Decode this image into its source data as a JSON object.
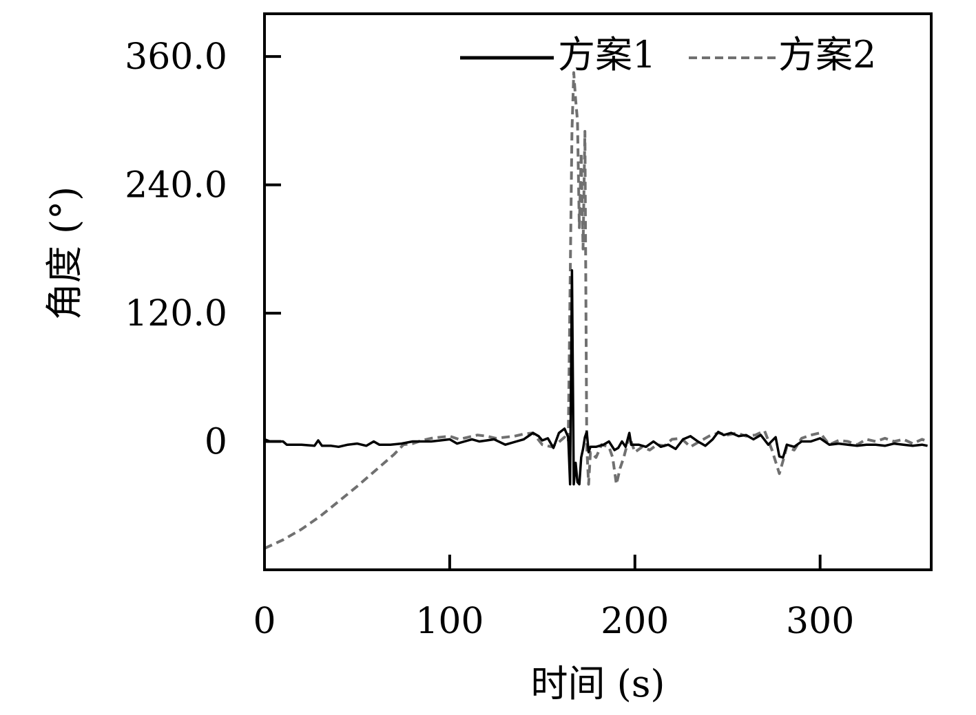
{
  "chart_data": {
    "type": "line",
    "xlabel": "时间 (s)",
    "ylabel": "角度 (°)",
    "xlim": [
      0,
      360
    ],
    "ylim": [
      -120,
      400
    ],
    "xticks": [
      0,
      100,
      200,
      300
    ],
    "xtick_labels": [
      "0",
      "100",
      "200",
      "300"
    ],
    "yticks": [
      0,
      120,
      240,
      360
    ],
    "ytick_labels": [
      "0",
      "120.0",
      "240.0",
      "360.0"
    ],
    "legend_position": "top-right",
    "grid": false,
    "series": [
      {
        "name": "方案1",
        "color": "#000000",
        "dash": "solid",
        "points": [
          [
            0,
            2
          ],
          [
            3,
            0
          ],
          [
            6,
            0
          ],
          [
            10,
            0
          ],
          [
            12,
            -3
          ],
          [
            20,
            -3
          ],
          [
            27,
            -4
          ],
          [
            29,
            1
          ],
          [
            31,
            -4
          ],
          [
            36,
            -4
          ],
          [
            40,
            -5
          ],
          [
            45,
            -3
          ],
          [
            50,
            -2
          ],
          [
            55,
            -4
          ],
          [
            59,
            0
          ],
          [
            62,
            -3
          ],
          [
            68,
            -3
          ],
          [
            74,
            -2
          ],
          [
            80,
            0
          ],
          [
            85,
            0
          ],
          [
            90,
            0
          ],
          [
            95,
            1
          ],
          [
            100,
            2
          ],
          [
            104,
            -2
          ],
          [
            108,
            0
          ],
          [
            112,
            2
          ],
          [
            116,
            0
          ],
          [
            120,
            1
          ],
          [
            124,
            2
          ],
          [
            130,
            -3
          ],
          [
            136,
            0
          ],
          [
            140,
            2
          ],
          [
            145,
            8
          ],
          [
            148,
            5
          ],
          [
            150,
            1
          ],
          [
            153,
            3
          ],
          [
            156,
            -6
          ],
          [
            159,
            8
          ],
          [
            162,
            12
          ],
          [
            164,
            4
          ],
          [
            165,
            -40
          ],
          [
            166,
            160
          ],
          [
            167,
            -40
          ],
          [
            168,
            -20
          ],
          [
            169,
            -38
          ],
          [
            170,
            -40
          ],
          [
            171,
            -15
          ],
          [
            172,
            -7
          ],
          [
            173,
            4
          ],
          [
            174,
            9
          ],
          [
            175,
            -10
          ],
          [
            176,
            -5
          ],
          [
            179,
            -5
          ],
          [
            183,
            -3
          ],
          [
            186,
            0
          ],
          [
            189,
            -8
          ],
          [
            191,
            -6
          ],
          [
            193,
            0
          ],
          [
            195,
            -5
          ],
          [
            197,
            8
          ],
          [
            198,
            -3
          ],
          [
            202,
            -3
          ],
          [
            206,
            -5
          ],
          [
            210,
            0
          ],
          [
            214,
            -5
          ],
          [
            218,
            -3
          ],
          [
            222,
            -7
          ],
          [
            226,
            2
          ],
          [
            230,
            5
          ],
          [
            234,
            0
          ],
          [
            238,
            -4
          ],
          [
            242,
            2
          ],
          [
            245,
            9
          ],
          [
            248,
            6
          ],
          [
            252,
            8
          ],
          [
            256,
            5
          ],
          [
            260,
            6
          ],
          [
            264,
            2
          ],
          [
            268,
            6
          ],
          [
            272,
            -3
          ],
          [
            276,
            4
          ],
          [
            278,
            -14
          ],
          [
            280,
            -15
          ],
          [
            282,
            -3
          ],
          [
            286,
            -5
          ],
          [
            290,
            0
          ],
          [
            295,
            0
          ],
          [
            300,
            3
          ],
          [
            305,
            -3
          ],
          [
            310,
            -2
          ],
          [
            315,
            -3
          ],
          [
            320,
            -4
          ],
          [
            325,
            -3
          ],
          [
            330,
            -3
          ],
          [
            335,
            -4
          ],
          [
            340,
            -2
          ],
          [
            345,
            -3
          ],
          [
            350,
            -4
          ],
          [
            355,
            -3
          ],
          [
            358,
            -4
          ]
        ]
      },
      {
        "name": "方案2",
        "color": "#707070",
        "dash": "dashed",
        "points": [
          [
            0,
            -100
          ],
          [
            10,
            -92
          ],
          [
            20,
            -82
          ],
          [
            30,
            -70
          ],
          [
            40,
            -56
          ],
          [
            50,
            -42
          ],
          [
            60,
            -27
          ],
          [
            70,
            -12
          ],
          [
            75,
            -3
          ],
          [
            80,
            -2
          ],
          [
            85,
            1
          ],
          [
            90,
            3
          ],
          [
            95,
            4
          ],
          [
            100,
            5
          ],
          [
            105,
            2
          ],
          [
            110,
            4
          ],
          [
            115,
            6
          ],
          [
            120,
            5
          ],
          [
            125,
            3
          ],
          [
            130,
            4
          ],
          [
            135,
            5
          ],
          [
            140,
            7
          ],
          [
            145,
            8
          ],
          [
            150,
            -3
          ],
          [
            155,
            -5
          ],
          [
            158,
            -2
          ],
          [
            162,
            4
          ],
          [
            164,
            0
          ],
          [
            166,
            290
          ],
          [
            167,
            345
          ],
          [
            168,
            320
          ],
          [
            169,
            300
          ],
          [
            170,
            200
          ],
          [
            171,
            270
          ],
          [
            172,
            180
          ],
          [
            173,
            290
          ],
          [
            174,
            -5
          ],
          [
            175,
            -40
          ],
          [
            176,
            -10
          ],
          [
            179,
            -15
          ],
          [
            182,
            -3
          ],
          [
            186,
            -5
          ],
          [
            188,
            -15
          ],
          [
            190,
            -40
          ],
          [
            192,
            -25
          ],
          [
            194,
            -15
          ],
          [
            197,
            5
          ],
          [
            200,
            -10
          ],
          [
            204,
            -5
          ],
          [
            208,
            -8
          ],
          [
            212,
            -3
          ],
          [
            216,
            -4
          ],
          [
            220,
            2
          ],
          [
            225,
            3
          ],
          [
            230,
            -5
          ],
          [
            235,
            0
          ],
          [
            240,
            5
          ],
          [
            245,
            8
          ],
          [
            250,
            6
          ],
          [
            255,
            8
          ],
          [
            260,
            5
          ],
          [
            265,
            6
          ],
          [
            270,
            10
          ],
          [
            274,
            -8
          ],
          [
            278,
            -30
          ],
          [
            280,
            -18
          ],
          [
            282,
            -5
          ],
          [
            286,
            -8
          ],
          [
            290,
            3
          ],
          [
            295,
            6
          ],
          [
            300,
            8
          ],
          [
            305,
            -3
          ],
          [
            310,
            1
          ],
          [
            315,
            0
          ],
          [
            320,
            -3
          ],
          [
            325,
            2
          ],
          [
            330,
            0
          ],
          [
            335,
            3
          ],
          [
            340,
            0
          ],
          [
            345,
            2
          ],
          [
            350,
            -2
          ],
          [
            355,
            2
          ],
          [
            358,
            0
          ]
        ]
      }
    ]
  }
}
